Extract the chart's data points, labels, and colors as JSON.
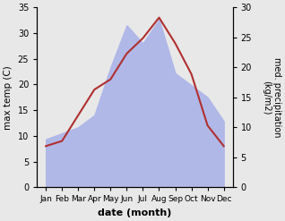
{
  "months": [
    "Jan",
    "Feb",
    "Mar",
    "Apr",
    "May",
    "Jun",
    "Jul",
    "Aug",
    "Sep",
    "Oct",
    "Nov",
    "Dec"
  ],
  "temperature": [
    8.0,
    9.0,
    14.0,
    19.0,
    21.0,
    26.0,
    29.0,
    33.0,
    28.0,
    22.0,
    12.0,
    8.0
  ],
  "precipitation": [
    8.0,
    9.0,
    10.0,
    12.0,
    20.0,
    27.0,
    24.0,
    28.0,
    19.0,
    17.0,
    15.0,
    11.0
  ],
  "temp_color": "#b03030",
  "precip_fill_color": "#b0b8e8",
  "ylabel_left": "max temp (C)",
  "ylabel_right": "med. precipitation\n(kg/m2)",
  "xlabel": "date (month)",
  "ylim_left": [
    0,
    35
  ],
  "ylim_right": [
    0,
    30
  ],
  "yticks_left": [
    0,
    5,
    10,
    15,
    20,
    25,
    30,
    35
  ],
  "yticks_right": [
    0,
    5,
    10,
    15,
    20,
    25,
    30
  ],
  "fig_bg": "#e8e8e8",
  "plot_bg": "#ffffff"
}
